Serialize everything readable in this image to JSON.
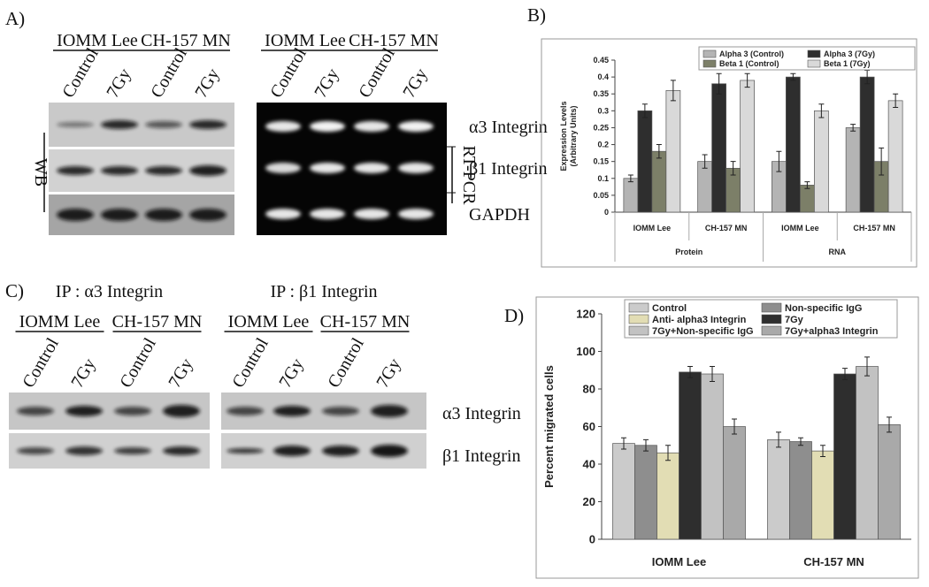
{
  "panel_labels": [
    "A)",
    "B)",
    "C)",
    "D)"
  ],
  "panel_a": {
    "western": {
      "cell_lines": [
        "IOMM Lee",
        "CH-157 MN"
      ],
      "lanes": [
        "Control",
        "7Gy",
        "Control",
        "7Gy"
      ],
      "method": "WB"
    },
    "pcr": {
      "cell_lines": [
        "IOMM Lee",
        "CH-157 MN"
      ],
      "lanes": [
        "Control",
        "7Gy",
        "Control",
        "7Gy"
      ],
      "method": "RT-PCR"
    },
    "bands": [
      "α3 Integrin",
      "β1 Integrin",
      "GAPDH"
    ]
  },
  "panel_c": {
    "blots": [
      {
        "title": "IP : α3 Integrin",
        "cell_lines": [
          "IOMM Lee",
          "CH-157 MN"
        ],
        "lanes": [
          "Control",
          "7Gy",
          "Control",
          "7Gy"
        ]
      },
      {
        "title": "IP : β1 Integrin",
        "cell_lines": [
          "IOMM Lee",
          "CH-157 MN"
        ],
        "lanes": [
          "Control",
          "7Gy",
          "Control",
          "7Gy"
        ]
      }
    ],
    "bands": [
      "α3 Integrin",
      "β1 Integrin"
    ]
  },
  "chart_data": [
    {
      "type": "bar",
      "ylabel": [
        "Expression Levels",
        "(Arbitrary Units)"
      ],
      "categories": [
        "IOMM Lee",
        "CH-157 MN",
        "IOMM Lee",
        "CH-157 MN"
      ],
      "group_labels": [
        "Protein",
        "RNA"
      ],
      "series": [
        {
          "name": "Alpha 3 (Control)",
          "color": "#b4b4b4",
          "values": [
            0.1,
            0.15,
            0.15,
            0.25
          ],
          "errors": [
            0.01,
            0.02,
            0.03,
            0.01
          ]
        },
        {
          "name": "Alpha 3 (7Gy)",
          "color": "#2e2e2e",
          "values": [
            0.3,
            0.38,
            0.4,
            0.4
          ],
          "errors": [
            0.02,
            0.03,
            0.01,
            0.02
          ]
        },
        {
          "name": "Beta 1 (Control)",
          "color": "#7c7f68",
          "values": [
            0.18,
            0.13,
            0.08,
            0.15
          ],
          "errors": [
            0.02,
            0.02,
            0.01,
            0.04
          ]
        },
        {
          "name": "Beta 1 (7Gy)",
          "color": "#d9d9d9",
          "values": [
            0.36,
            0.39,
            0.3,
            0.33
          ],
          "errors": [
            0.03,
            0.02,
            0.02,
            0.02
          ]
        }
      ],
      "ylim": [
        0,
        0.45
      ],
      "yticks": [
        0,
        0.05,
        0.1,
        0.15,
        0.2,
        0.25,
        0.3,
        0.35,
        0.4,
        0.45
      ],
      "grid": false
    },
    {
      "type": "bar",
      "ylabel": [
        "Percent migrated cells"
      ],
      "categories": [
        "IOMM Lee",
        "CH-157 MN"
      ],
      "series": [
        {
          "name": "Control",
          "color": "#cbcbcb",
          "values": [
            51,
            53
          ],
          "errors": [
            3,
            4
          ]
        },
        {
          "name": "Non-specific IgG",
          "color": "#8e8e8e",
          "values": [
            50,
            52
          ],
          "errors": [
            3,
            2
          ]
        },
        {
          "name": "Anti- alpha3 Integrin",
          "color": "#e2ddb4",
          "values": [
            46,
            47
          ],
          "errors": [
            4,
            3
          ]
        },
        {
          "name": "7Gy",
          "color": "#2e2e2e",
          "values": [
            89,
            88
          ],
          "errors": [
            3,
            3
          ]
        },
        {
          "name": "7Gy+Non-specific IgG",
          "color": "#c2c2c2",
          "values": [
            88,
            92
          ],
          "errors": [
            4,
            5
          ]
        },
        {
          "name": "7Gy+alpha3 Integrin",
          "color": "#a9a9a9",
          "values": [
            60,
            61
          ],
          "errors": [
            4,
            4
          ]
        }
      ],
      "ylim": [
        0,
        120
      ],
      "yticks": [
        0,
        20,
        40,
        60,
        80,
        100,
        120
      ],
      "grid": false
    }
  ]
}
